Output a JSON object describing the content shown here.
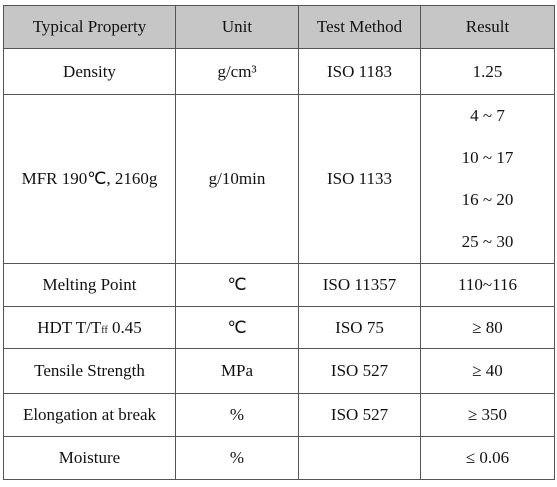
{
  "table": {
    "header": [
      "Typical Property",
      "Unit",
      "Test Method",
      "Result"
    ],
    "rows": [
      [
        "Density",
        "g/cm³",
        "ISO 1183",
        "1.25"
      ],
      [
        "MFR 190℃, 2160g",
        "g/10min",
        "ISO 1133",
        [
          "4 ~ 7",
          "10 ~ 17",
          "16 ~ 20",
          "25 ~ 30"
        ]
      ],
      [
        "Melting Point",
        "℃",
        "ISO 11357",
        "110~116"
      ],
      [
        [
          "HDT T/T",
          "ff",
          " 0.45"
        ],
        "℃",
        "ISO 75",
        "≥ 80"
      ],
      [
        "Tensile Strength",
        "MPa",
        "ISO 527",
        "≥ 40"
      ],
      [
        "Elongation at break",
        "%",
        "ISO 527",
        "≥ 350"
      ],
      [
        "Moisture",
        "%",
        null,
        "≤ 0.06"
      ]
    ]
  }
}
